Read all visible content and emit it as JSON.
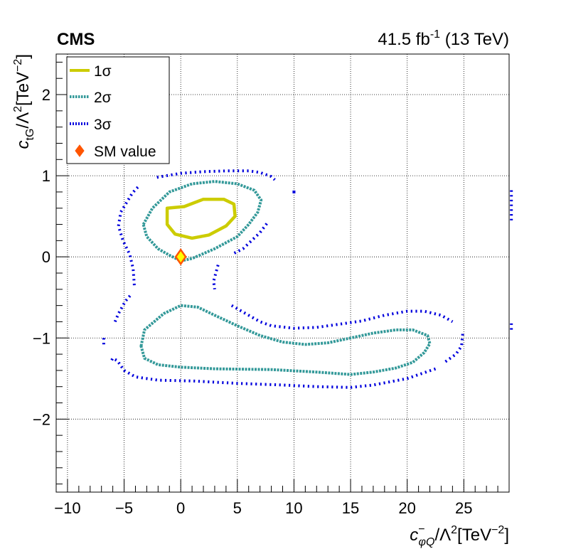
{
  "header": {
    "experiment": "CMS",
    "luminosity": "41.5 fb",
    "lumi_exponent": "-1",
    "energy": "(13 TeV)"
  },
  "axes": {
    "x_title_base": "c",
    "x_title_sup": "−",
    "x_title_sub": "φQ",
    "x_title_rest": "/Λ",
    "x_title_sq": "2",
    "x_title_unit": "[TeV",
    "x_title_unit_exp": "−2",
    "x_title_close": "]",
    "y_title_base": "c",
    "y_title_sub": "tG",
    "y_title_rest": "/Λ",
    "y_title_sq": "2",
    "y_title_unit": "[TeV",
    "y_title_unit_exp": "−2",
    "y_title_close": "]"
  },
  "legend": {
    "entries": [
      {
        "label": "1σ",
        "color": "#cccc00",
        "style": "solid"
      },
      {
        "label": "2σ",
        "color": "#339999",
        "style": "dotted"
      },
      {
        "label": "3σ",
        "color": "#0000dd",
        "style": "dotted"
      },
      {
        "label": "SM value",
        "color": "#ff5500",
        "style": "marker"
      }
    ]
  },
  "chart_data": {
    "type": "scatter",
    "subtype": "likelihood-contour",
    "xlim": [
      -11,
      29
    ],
    "ylim": [
      -2.9,
      2.5
    ],
    "x_ticks": [
      -10,
      -5,
      0,
      5,
      10,
      15,
      20,
      25
    ],
    "x_tick_labels": [
      "−10",
      "−5",
      "0",
      "5",
      "10",
      "15",
      "20",
      "25"
    ],
    "y_ticks": [
      -2,
      -1,
      0,
      1,
      2
    ],
    "y_tick_labels": [
      "−2",
      "−1",
      "0",
      "1",
      "2"
    ],
    "grid": true,
    "legend_position": "top-left",
    "sm_point": {
      "x": 0,
      "y": 0
    },
    "series": [
      {
        "name": "1σ",
        "color": "#cccc00",
        "closed": true,
        "contours": [
          [
            [
              -1.2,
              0.6
            ],
            [
              -1.2,
              0.4
            ],
            [
              -0.5,
              0.28
            ],
            [
              1,
              0.23
            ],
            [
              2.5,
              0.27
            ],
            [
              4,
              0.38
            ],
            [
              4.8,
              0.5
            ],
            [
              4.7,
              0.65
            ],
            [
              3.8,
              0.71
            ],
            [
              2,
              0.71
            ],
            [
              0.3,
              0.62
            ],
            [
              -1.2,
              0.6
            ]
          ]
        ]
      },
      {
        "name": "2σ",
        "color": "#339999",
        "closed": true,
        "contours": [
          [
            [
              -3.3,
              0.4
            ],
            [
              -2.5,
              0.6
            ],
            [
              -1,
              0.8
            ],
            [
              1,
              0.9
            ],
            [
              3,
              0.93
            ],
            [
              5,
              0.9
            ],
            [
              6.5,
              0.82
            ],
            [
              7.1,
              0.7
            ],
            [
              6.8,
              0.55
            ],
            [
              6,
              0.4
            ],
            [
              5,
              0.25
            ],
            [
              3,
              0.1
            ],
            [
              1,
              -0.02
            ],
            [
              0,
              -0.05
            ],
            [
              -1,
              0.02
            ],
            [
              -2,
              0.1
            ],
            [
              -3,
              0.25
            ],
            [
              -3.3,
              0.4
            ]
          ],
          [
            [
              -3.5,
              -1.1
            ],
            [
              -3.2,
              -0.9
            ],
            [
              -1.5,
              -0.7
            ],
            [
              0,
              -0.6
            ],
            [
              1.5,
              -0.62
            ],
            [
              3,
              -0.72
            ],
            [
              5,
              -0.85
            ],
            [
              7,
              -0.97
            ],
            [
              9,
              -1.05
            ],
            [
              11,
              -1.08
            ],
            [
              13,
              -1.06
            ],
            [
              15,
              -1.0
            ],
            [
              17,
              -0.94
            ],
            [
              19,
              -0.9
            ],
            [
              20.5,
              -0.9
            ],
            [
              21.8,
              -0.97
            ],
            [
              22,
              -1.07
            ],
            [
              21.5,
              -1.18
            ],
            [
              20.5,
              -1.3
            ],
            [
              19,
              -1.37
            ],
            [
              17,
              -1.42
            ],
            [
              15,
              -1.45
            ],
            [
              12,
              -1.42
            ],
            [
              8,
              -1.39
            ],
            [
              3,
              -1.38
            ],
            [
              0,
              -1.36
            ],
            [
              -2,
              -1.33
            ],
            [
              -3.2,
              -1.25
            ],
            [
              -3.5,
              -1.1
            ]
          ]
        ]
      },
      {
        "name": "3σ",
        "color": "#0000dd",
        "closed": false,
        "contours": [
          [
            [
              -4.1,
              -0.35
            ],
            [
              -4.2,
              -0.15
            ],
            [
              -4.5,
              0.03
            ],
            [
              -5.1,
              0.2
            ],
            [
              -5.5,
              0.38
            ],
            [
              -5.3,
              0.55
            ],
            [
              -4.3,
              0.78
            ],
            [
              -4.0,
              0.83
            ],
            [
              -3.7,
              0.87
            ]
          ],
          [
            [
              -2.1,
              0.98
            ],
            [
              0,
              1.03
            ],
            [
              2,
              1.05
            ],
            [
              4,
              1.06
            ],
            [
              6,
              1.06
            ],
            [
              7,
              1.04
            ],
            [
              8,
              0.99
            ],
            [
              8.3,
              0.95
            ]
          ],
          [
            [
              10,
              0.8
            ]
          ],
          [
            [
              7.6,
              0.41
            ],
            [
              7,
              0.3
            ],
            [
              5.5,
              0.1
            ],
            [
              4.5,
              0.03
            ]
          ],
          [
            [
              3.3,
              -0.1
            ],
            [
              3.1,
              -0.2
            ],
            [
              2.9,
              -0.3
            ],
            [
              3,
              -0.4
            ]
          ],
          [
            [
              -6.8,
              -1.0
            ],
            [
              -6.8,
              -1.1
            ]
          ],
          [
            [
              -5.8,
              -0.8
            ],
            [
              -5.5,
              -0.7
            ],
            [
              -4.9,
              -0.55
            ],
            [
              -4.3,
              -0.45
            ]
          ],
          [
            [
              4.5,
              -0.6
            ],
            [
              5.5,
              -0.68
            ],
            [
              7,
              -0.8
            ],
            [
              8,
              -0.85
            ],
            [
              10,
              -0.88
            ],
            [
              12,
              -0.87
            ],
            [
              14,
              -0.83
            ],
            [
              16,
              -0.79
            ],
            [
              18,
              -0.72
            ],
            [
              20,
              -0.67
            ],
            [
              21.5,
              -0.67
            ],
            [
              23,
              -0.72
            ],
            [
              24,
              -0.8
            ]
          ],
          [
            [
              24.9,
              -0.95
            ],
            [
              24.8,
              -1.1
            ],
            [
              24.3,
              -1.2
            ],
            [
              23.3,
              -1.3
            ]
          ],
          [
            [
              22.5,
              -1.38
            ],
            [
              20,
              -1.5
            ],
            [
              17,
              -1.58
            ],
            [
              15,
              -1.61
            ],
            [
              12,
              -1.6
            ],
            [
              9,
              -1.58
            ],
            [
              5,
              -1.56
            ],
            [
              1,
              -1.53
            ],
            [
              -2,
              -1.52
            ],
            [
              -4,
              -1.48
            ],
            [
              -5,
              -1.4
            ],
            [
              -5.6,
              -1.28
            ],
            [
              -6,
              -1.25
            ],
            [
              -6.2,
              -1.3
            ]
          ],
          [
            [
              29.2,
              0.45
            ],
            [
              29.2,
              0.65
            ],
            [
              29.2,
              0.85
            ]
          ],
          [
            [
              29.2,
              -0.82
            ],
            [
              29.2,
              -0.92
            ]
          ]
        ]
      }
    ]
  }
}
